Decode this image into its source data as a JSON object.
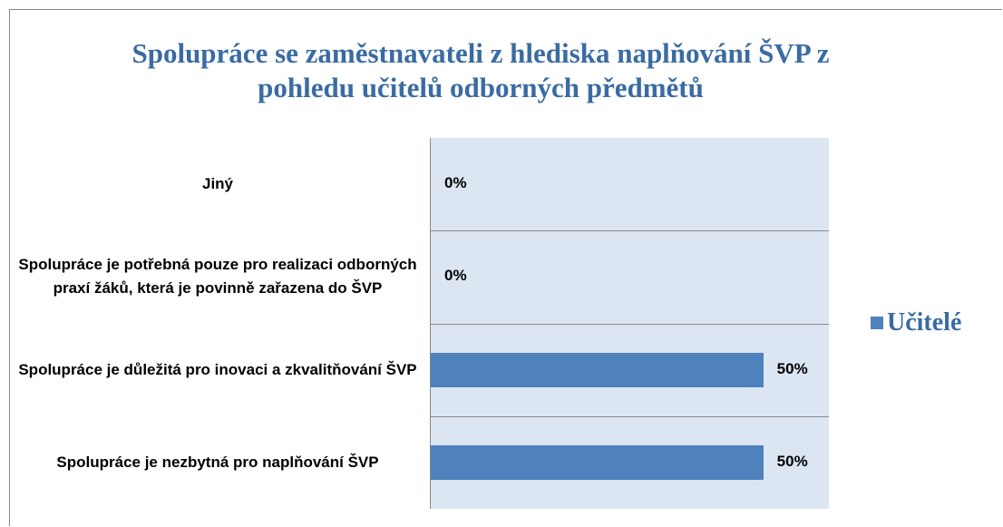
{
  "chart_data": {
    "type": "bar",
    "orientation": "horizontal",
    "title": "Spolupráce se zaměstnavateli z hlediska naplňování ŠVP z pohledu učitelů odborných předmětů",
    "categories": [
      "Jiný",
      "Spolupráce je potřebná pouze pro realizaci odborných praxí žáků, která je povinně zařazena do ŠVP",
      "Spolupráce je důležitá pro inovaci a zkvalitňování ŠVP",
      "Spolupráce je nezbytná pro naplňování ŠVP"
    ],
    "series": [
      {
        "name": "Učitelé",
        "color": "#4f81bd",
        "values": [
          0,
          0,
          50,
          50
        ],
        "value_labels": [
          "0%",
          "0%",
          "50%",
          "50%"
        ]
      }
    ],
    "xlim": [
      0,
      60
    ],
    "legend": "right"
  }
}
